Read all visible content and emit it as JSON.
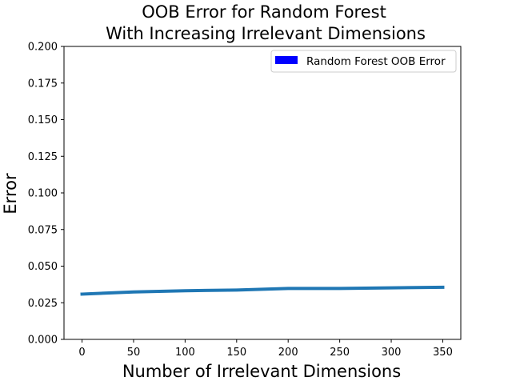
{
  "chart_data": {
    "type": "line",
    "title": [
      "OOB Error for Random Forest",
      "With Increasing Irrelevant Dimensions"
    ],
    "xlabel": "Number of Irrelevant Dimensions",
    "ylabel": "Error",
    "xlim": [
      -17.5,
      367.5
    ],
    "ylim": [
      0,
      0.2
    ],
    "x_ticks": [
      0,
      50,
      100,
      150,
      200,
      250,
      300,
      350
    ],
    "y_ticks": [
      0.0,
      0.025,
      0.05,
      0.075,
      0.1,
      0.125,
      0.15,
      0.175,
      0.2
    ],
    "y_tick_labels": [
      "0.000",
      "0.025",
      "0.050",
      "0.075",
      "0.100",
      "0.125",
      "0.150",
      "0.175",
      "0.200"
    ],
    "x_tick_labels": [
      "0",
      "50",
      "100",
      "150",
      "200",
      "250",
      "300",
      "350"
    ],
    "grid": false,
    "legend_position": "top-right",
    "series": [
      {
        "name": "Random Forest OOB Error",
        "line_color": "#1f77b4",
        "legend_color": "#0000ff",
        "x": [
          0,
          50,
          100,
          150,
          200,
          250,
          300,
          350
        ],
        "values": [
          0.0309,
          0.0324,
          0.0332,
          0.0337,
          0.0348,
          0.0348,
          0.0352,
          0.0356
        ]
      }
    ]
  }
}
